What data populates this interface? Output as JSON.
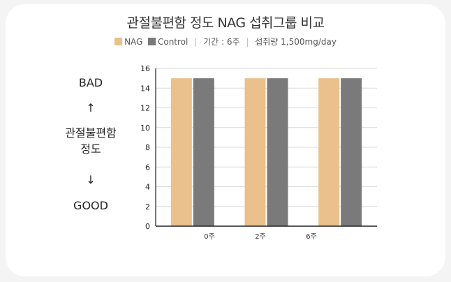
{
  "chart_data": {
    "type": "bar",
    "title": "관절불편함 정도 NAG 섭취그룹 비교",
    "categories": [
      "0주",
      "2주",
      "6주"
    ],
    "series": [
      {
        "name": "NAG",
        "values": [
          15,
          15,
          15
        ],
        "color": "#eac18c"
      },
      {
        "name": "Control",
        "values": [
          15,
          15,
          15
        ],
        "color": "#7a7a7a"
      }
    ],
    "legend_notes": [
      "기간 : 6주",
      "섭취량 1,500mg/day"
    ],
    "ylim": [
      0,
      16
    ],
    "yticks": [
      0,
      2,
      4,
      6,
      8,
      10,
      12,
      14,
      16
    ],
    "grid": true,
    "legend_position": "top-center",
    "ylabel": {
      "top": "BAD",
      "up_arrow": "↑",
      "middle_line1": "관절불편함",
      "middle_line2": "정도",
      "down_arrow": "↓",
      "bottom": "GOOD"
    }
  }
}
